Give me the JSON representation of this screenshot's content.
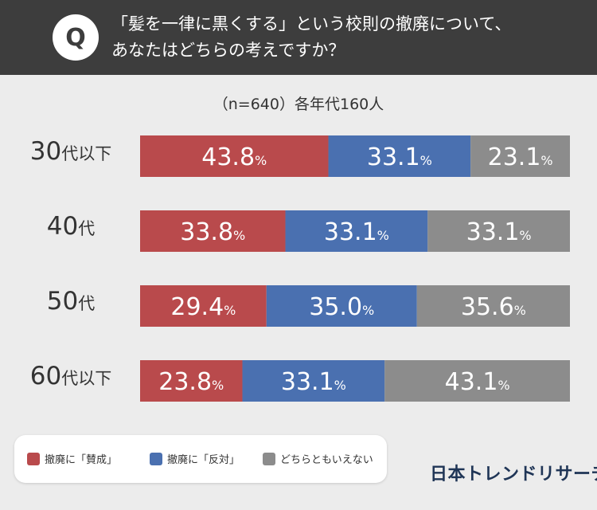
{
  "header": {
    "badge": "Q",
    "question_line1": "「髪を一律に黒くする」という校則の撤廃について、",
    "question_line2": "あなたはどちらの考えですか？"
  },
  "chart_data": {
    "type": "bar",
    "orientation": "horizontal",
    "stacked": true,
    "percent_stacked": true,
    "subtitle": "（n=640）各年代160人",
    "categories": [
      "30代以下",
      "40代",
      "50代",
      "60代以下"
    ],
    "category_parts": [
      {
        "num": "30",
        "suffix": "代以下"
      },
      {
        "num": "40",
        "suffix": "代"
      },
      {
        "num": "50",
        "suffix": "代"
      },
      {
        "num": "60",
        "suffix": "代以下"
      }
    ],
    "series": [
      {
        "name": "撤廃に「賛成」",
        "color": "#b94a4c",
        "values": [
          43.8,
          33.8,
          29.4,
          23.8
        ]
      },
      {
        "name": "撤廃に「反対」",
        "color": "#4a70b0",
        "values": [
          33.1,
          33.1,
          35.0,
          33.1
        ]
      },
      {
        "name": "どちらともいえない",
        "color": "#8c8c8c",
        "values": [
          23.1,
          33.1,
          35.6,
          43.1
        ]
      }
    ],
    "labels": [
      [
        "43.8",
        "33.1",
        "23.1"
      ],
      [
        "33.8",
        "33.1",
        "33.1"
      ],
      [
        "29.4",
        "35.0",
        "35.6"
      ],
      [
        "23.8",
        "33.1",
        "43.1"
      ]
    ],
    "unit": "%",
    "legend_position": "bottom-left"
  },
  "legend": {
    "items": [
      {
        "label": "撤廃に「賛成」",
        "color": "#b94a4c"
      },
      {
        "label": "撤廃に「反対」",
        "color": "#4a70b0"
      },
      {
        "label": "どちらともいえない",
        "color": "#8c8c8c"
      }
    ]
  },
  "brand": {
    "name": "日本トレンドリサーチ"
  }
}
